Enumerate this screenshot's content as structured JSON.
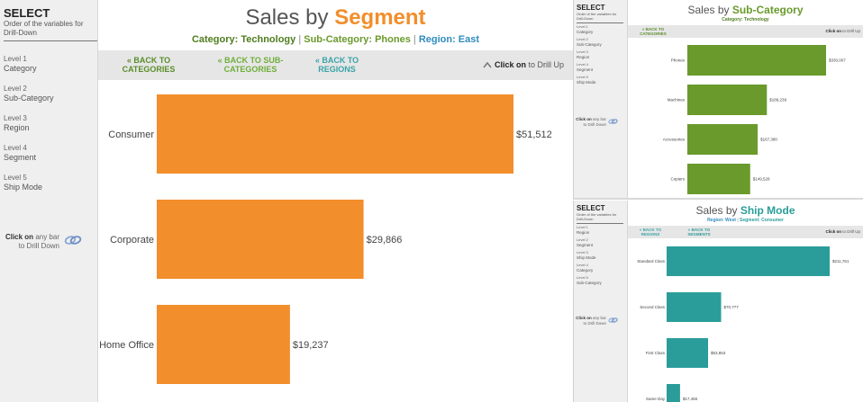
{
  "colors": {
    "orange": "#f28e2b",
    "green": "#6a9a2c",
    "teal": "#2a9d9a",
    "link_orange": "#f28e2b",
    "link_green": "#5f9b2a",
    "link_teal": "#3aa3a8",
    "blue_label": "#2f8bbf"
  },
  "main": {
    "sidebar": {
      "title": "SELECT",
      "subtitle": "Order of the variables for Drill-Down",
      "levels": [
        {
          "level": "Level 1",
          "name": "Category"
        },
        {
          "level": "Level 2",
          "name": "Sub-Category"
        },
        {
          "level": "Level 3",
          "name": "Region"
        },
        {
          "level": "Level 4",
          "name": "Segment"
        },
        {
          "level": "Level 5",
          "name": "Ship Mode"
        }
      ],
      "hint_bold": "Click on",
      "hint_rest": "any bar to Drill Down",
      "hint_icon": "link-icon"
    },
    "title_prefix": "Sales by",
    "title_highlight": "Segment",
    "filters": {
      "cat_label": "Category: Technology",
      "sep1": "|",
      "subcat_label": "Sub-Category: Phones",
      "sep2": "|",
      "region_label": "Region: East"
    },
    "nav": {
      "back_categories": "« BACK TO CATEGORIES",
      "back_subcategories": "« BACK TO SUB-CATEGORIES",
      "back_regions": "« BACK TO REGIONS",
      "drill_up_bold": "Click on",
      "drill_up_rest": "to Drill Up",
      "drill_up_icon": "drill-up-icon"
    }
  },
  "top": {
    "sidebar": {
      "title": "SELECT",
      "subtitle": "Order of the variables for Drill-Down",
      "levels": [
        {
          "level": "Level 1",
          "name": "Category"
        },
        {
          "level": "Level 2",
          "name": "Sub-Category"
        },
        {
          "level": "Level 3",
          "name": "Region"
        },
        {
          "level": "Level 4",
          "name": "Segment"
        },
        {
          "level": "Level 5",
          "name": "Ship Mode"
        }
      ],
      "hint_bold": "Click on",
      "hint_rest": "any bar to Drill Down"
    },
    "title_prefix": "Sales by",
    "title_highlight": "Sub-Category",
    "filters": {
      "cat_label": "Category: Technology"
    },
    "nav": {
      "back_categories": "« BACK TO CATEGORIES",
      "drill_up_bold": "Click on",
      "drill_up_rest": "to Drill Up"
    }
  },
  "bottom": {
    "sidebar": {
      "title": "SELECT",
      "subtitle": "Order of the variables for Drill-Down",
      "levels": [
        {
          "level": "Level 1",
          "name": "Region"
        },
        {
          "level": "Level 2",
          "name": "Segment"
        },
        {
          "level": "Level 3",
          "name": "Ship Mode"
        },
        {
          "level": "Level 4",
          "name": "Category"
        },
        {
          "level": "Level 5",
          "name": "Sub-Category"
        }
      ],
      "hint_bold": "Click on",
      "hint_rest": "any bar to Drill Down"
    },
    "title_prefix": "Sales by",
    "title_highlight": "Ship Mode",
    "filters": {
      "region_label": "Region: West",
      "sep1": "|",
      "segment_label": "Segment: Consumer"
    },
    "nav": {
      "back_regions": "« BACK TO REGIONS",
      "back_segments": "« BACK TO SEGMENTS",
      "drill_up_bold": "Click on",
      "drill_up_rest": "to Drill Up"
    }
  },
  "chart_data": [
    {
      "type": "bar",
      "orientation": "horizontal",
      "title": "Sales by Segment",
      "categories": [
        "Consumer",
        "Corporate",
        "Home Office"
      ],
      "values": [
        51512,
        29866,
        19237
      ],
      "labels": [
        "$51,512",
        "$29,866",
        "$19,237"
      ],
      "color": "#f28e2b"
    },
    {
      "type": "bar",
      "orientation": "horizontal",
      "title": "Sales by Sub-Category",
      "categories": [
        "Phones",
        "Machines",
        "Accessories",
        "Copiers"
      ],
      "values": [
        330007,
        189239,
        167380,
        149528
      ],
      "labels": [
        "$330,007",
        "$189,239",
        "$167,380",
        "$149,528"
      ],
      "color": "#6a9a2c"
    },
    {
      "type": "bar",
      "orientation": "horizontal",
      "title": "Sales by Ship Mode",
      "categories": [
        "Standard Class",
        "Second Class",
        "First Class",
        "Same Day"
      ],
      "values": [
        211761,
        70777,
        53853,
        17456
      ],
      "labels": [
        "$211,761",
        "$70,777",
        "$53,853",
        "$17,456"
      ],
      "color": "#2a9d9a"
    }
  ]
}
